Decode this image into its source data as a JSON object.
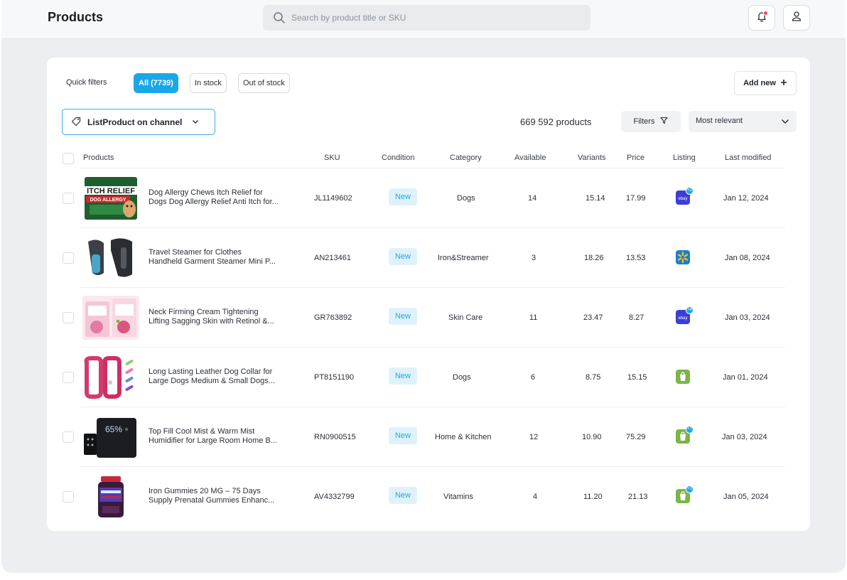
{
  "header": {
    "title": "Products",
    "search_placeholder": "Search by product title or SKU"
  },
  "toolbar": {
    "quick_filters_label": "Quick filters",
    "chips": [
      "All (7739)",
      "In stock",
      "Out of stock"
    ],
    "add_new_label": "Add new",
    "channel_filter_label": "ListProduct on channel",
    "product_count": "669 592 products",
    "filters_label": "Filters",
    "sort_value": "Most relevant"
  },
  "table": {
    "columns": [
      "Products",
      "SKU",
      "Condition",
      "Category",
      "Available",
      "Variants",
      "Price",
      "Listing",
      "Last modified"
    ],
    "rows": [
      {
        "title1": "Dog Allergy Chews Itch Relief for",
        "title2": "Dogs Dog Allergy Relief Anti Itch for...",
        "sku": "JL1149602",
        "condition": "New",
        "category": "Dogs",
        "available": "14",
        "variants": "15.14",
        "price": "17.99",
        "listing": "ebay",
        "listing_extra": "+2",
        "modified": "Jan 12, 2024"
      },
      {
        "title1": "Travel Steamer for Clothes",
        "title2": "Handheld Garment Steamer Mini P...",
        "sku": "AN213461",
        "condition": "New",
        "category": "Iron&Streamer",
        "available": "3",
        "variants": "18.26",
        "price": "13.53",
        "listing": "walmart",
        "listing_extra": "",
        "modified": "Jan 08, 2024"
      },
      {
        "title1": "Neck Firming Cream Tightening",
        "title2": "Lifting Sagging Skin with Retinol &...",
        "sku": "GR763892",
        "condition": "New",
        "category": "Skin Care",
        "available": "11",
        "variants": "23.47",
        "price": "8.27",
        "listing": "ebay",
        "listing_extra": "+4",
        "modified": "Jan 03, 2024"
      },
      {
        "title1": "Long Lasting Leather Dog Collar for",
        "title2": "Large Dogs Medium & Small Dogs...",
        "sku": "PT8151190",
        "condition": "New",
        "category": "Dogs",
        "available": "6",
        "variants": "8.75",
        "price": "15.15",
        "listing": "shopify",
        "listing_extra": "",
        "modified": "Jan 01, 2024"
      },
      {
        "title1": "Top Fill Cool Mist & Warm Mist",
        "title2": "Humidifier for Large Room Home B...",
        "sku": "RN0900515",
        "condition": "New",
        "category": "Home & Kitchen",
        "available": "12",
        "variants": "10.90",
        "price": "75.29",
        "listing": "shopify",
        "listing_extra": "+7",
        "modified": "Jan 03, 2024"
      },
      {
        "title1": "Iron Gummies 20 MG – 75 Days",
        "title2": "Supply Prenatal Gummies Enhanc...",
        "sku": "AV4332799",
        "condition": "New",
        "category": "Vitamins",
        "available": "4",
        "variants": "11.20",
        "price": "21.13",
        "listing": "shopify",
        "listing_extra": "+1",
        "modified": "Jan 05, 2024"
      }
    ]
  },
  "thumbnails": {
    "row1_text": "ITCH RELIEF",
    "row1_subtext": "DOG ALLERGY",
    "row5_display": "65%"
  },
  "colors": {
    "accent": "#1aa7e8",
    "ebay": "#3b3fd6",
    "walmart": "#1a7fd1",
    "shopify": "#7ab547"
  }
}
